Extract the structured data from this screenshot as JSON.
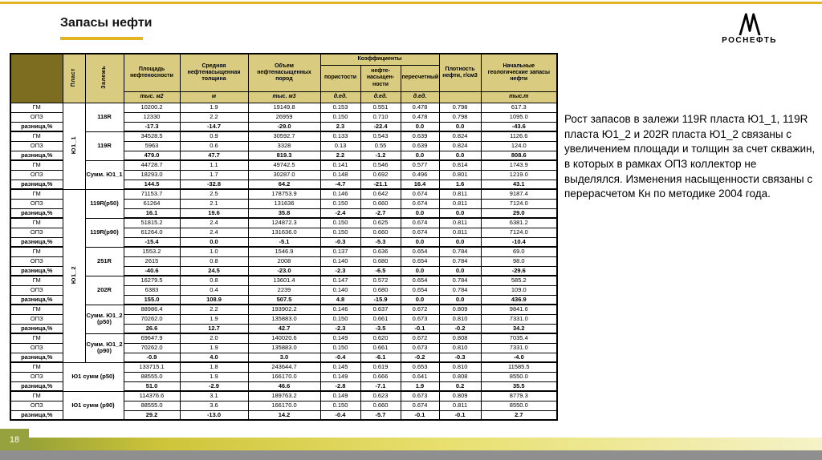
{
  "slide": {
    "title": "Запасы нефти",
    "page_number": "18",
    "logo_text": "РОСНЕФТЬ",
    "commentary": "Рост запасов в залежи 119R пласта Ю1_1, 119R пласта Ю1_2 и 202R пласта Ю1_2 связаны с увеличением площади и толщин за счет скважин, в которых в рамках ОПЗ коллектор не выделялся. Изменения насыщенности связаны с перерасчетом Кн по методике 2004 года."
  },
  "colors": {
    "accent_yellow": "#e3b522",
    "table_header_fill": "#d9cc80",
    "corner_fill": "#7c6d20",
    "page_badge_fill": "#95a23e",
    "viewer_strip": "#8f8f8f"
  },
  "table": {
    "header": {
      "plast": "Пласт",
      "zalezh": "Залежь",
      "coefficients": "Коэффициенты",
      "columns": [
        {
          "label": "Площадь нефтеносности",
          "unit": "тыс. м2"
        },
        {
          "label": "Средняя нефтенасыщенная толщина",
          "unit": "м"
        },
        {
          "label": "Объем нефтенасыщенных пород",
          "unit": "тыс. м3"
        },
        {
          "label": "пористости",
          "unit": "д.ед."
        },
        {
          "label": "нефте-насыщен-ности",
          "unit": "д.ед."
        },
        {
          "label": "пересчетный",
          "unit": "д.ед."
        },
        {
          "label": "Плотность нефти, г/см3",
          "unit": ""
        },
        {
          "label": "Начальные геологические запасы нефти",
          "unit": "тыс.т"
        }
      ]
    },
    "plast_spans": [
      {
        "label": "Ю1_1",
        "groups": 3
      },
      {
        "label": "Ю1_2",
        "groups": 6
      }
    ],
    "row_types": [
      "ГМ",
      "ОПЗ",
      "разница,%"
    ],
    "groups": [
      {
        "zalezh": "118R",
        "merged": false,
        "rows": [
          {
            "type": "ГМ",
            "values": [
              "10200.2",
              "1.9",
              "19149.8",
              "0.153",
              "0.551",
              "0.478",
              "0.798",
              "617.3"
            ]
          },
          {
            "type": "ОПЗ",
            "values": [
              "12330",
              "2.2",
              "26959",
              "0.150",
              "0.710",
              "0.478",
              "0.798",
              "1095.0"
            ]
          },
          {
            "type": "разница,%",
            "values": [
              "-17.3",
              "-14.7",
              "-29.0",
              "2.3",
              "-22.4",
              "0.0",
              "0.0",
              "-43.6"
            ]
          }
        ]
      },
      {
        "zalezh": "119R",
        "merged": false,
        "rows": [
          {
            "type": "ГМ",
            "values": [
              "34528.5",
              "0.9",
              "30592.7",
              "0.133",
              "0.543",
              "0.639",
              "0.824",
              "1126.6"
            ]
          },
          {
            "type": "ОПЗ",
            "values": [
              "5963",
              "0.6",
              "3328",
              "0.13",
              "0.55",
              "0.639",
              "0.824",
              "124.0"
            ]
          },
          {
            "type": "разница,%",
            "values": [
              "479.0",
              "47.7",
              "819.3",
              "2.2",
              "-1.2",
              "0.0",
              "0.0",
              "808.6"
            ]
          }
        ]
      },
      {
        "zalezh": "Сумм. Ю1_1",
        "merged": false,
        "rows": [
          {
            "type": "ГМ",
            "values": [
              "44728.7",
              "1.1",
              "49742.5",
              "0.141",
              "0.546",
              "0.577",
              "0.814",
              "1743.9"
            ]
          },
          {
            "type": "ОПЗ",
            "values": [
              "18293.0",
              "1.7",
              "30287.0",
              "0.148",
              "0.692",
              "0.496",
              "0.801",
              "1219.0"
            ]
          },
          {
            "type": "разница,%",
            "values": [
              "144.5",
              "-32.8",
              "64.2",
              "-4.7",
              "-21.1",
              "16.4",
              "1.6",
              "43.1"
            ]
          }
        ]
      },
      {
        "zalezh": "119R(p50)",
        "merged": false,
        "rows": [
          {
            "type": "ГМ",
            "values": [
              "71153.7",
              "2.5",
              "178753.9",
              "0.146",
              "0.642",
              "0.674",
              "0.811",
              "9187.4"
            ]
          },
          {
            "type": "ОПЗ",
            "values": [
              "61264",
              "2.1",
              "131636",
              "0.150",
              "0.660",
              "0.674",
              "0.811",
              "7124.0"
            ]
          },
          {
            "type": "разница,%",
            "values": [
              "16.1",
              "19.6",
              "35.8",
              "-2.4",
              "-2.7",
              "0.0",
              "0.0",
              "29.0"
            ]
          }
        ]
      },
      {
        "zalezh": "119R(p90)",
        "merged": false,
        "rows": [
          {
            "type": "ГМ",
            "values": [
              "51815.2",
              "2.4",
              "124872.3",
              "0.150",
              "0.625",
              "0.674",
              "0.811",
              "6381.2"
            ]
          },
          {
            "type": "ОПЗ",
            "values": [
              "61264.0",
              "2.4",
              "131636.0",
              "0.150",
              "0.660",
              "0.674",
              "0.811",
              "7124.0"
            ]
          },
          {
            "type": "разница,%",
            "values": [
              "-15.4",
              "0.0",
              "-5.1",
              "-0.3",
              "-5.3",
              "0.0",
              "0.0",
              "-10.4"
            ]
          }
        ]
      },
      {
        "zalezh": "251R",
        "merged": false,
        "rows": [
          {
            "type": "ГМ",
            "values": [
              "1553.2",
              "1.0",
              "1546.9",
              "0.137",
              "0.636",
              "0.654",
              "0.784",
              "69.0"
            ]
          },
          {
            "type": "ОПЗ",
            "values": [
              "2615",
              "0.8",
              "2008",
              "0.140",
              "0.680",
              "0.654",
              "0.784",
              "98.0"
            ]
          },
          {
            "type": "разница,%",
            "values": [
              "-40.6",
              "24.5",
              "-23.0",
              "-2.3",
              "-6.5",
              "0.0",
              "0.0",
              "-29.6"
            ]
          }
        ]
      },
      {
        "zalezh": "202R",
        "merged": false,
        "rows": [
          {
            "type": "ГМ",
            "values": [
              "16279.5",
              "0.8",
              "13601.4",
              "0.147",
              "0.572",
              "0.654",
              "0.784",
              "585.2"
            ]
          },
          {
            "type": "ОПЗ",
            "values": [
              "6383",
              "0.4",
              "2239",
              "0.140",
              "0.680",
              "0.654",
              "0.784",
              "109.0"
            ]
          },
          {
            "type": "разница,%",
            "values": [
              "155.0",
              "108.9",
              "507.5",
              "4.8",
              "-15.9",
              "0.0",
              "0.0",
              "436.9"
            ]
          }
        ]
      },
      {
        "zalezh": "Сумм. Ю1_2 (p50)",
        "merged": false,
        "rows": [
          {
            "type": "ГМ",
            "values": [
              "88986.4",
              "2.2",
              "193902.2",
              "0.146",
              "0.637",
              "0.672",
              "0.809",
              "9841.6"
            ]
          },
          {
            "type": "ОПЗ",
            "values": [
              "70262.0",
              "1.9",
              "135883.0",
              "0.150",
              "0.661",
              "0.673",
              "0.810",
              "7331.0"
            ]
          },
          {
            "type": "разница,%",
            "values": [
              "26.6",
              "12.7",
              "42.7",
              "-2.3",
              "-3.5",
              "-0.1",
              "-0.2",
              "34.2"
            ]
          }
        ]
      },
      {
        "zalezh": "Сумм. Ю1_2 (p90)",
        "merged": false,
        "rows": [
          {
            "type": "ГМ",
            "values": [
              "69647.9",
              "2.0",
              "140020.6",
              "0.149",
              "0.620",
              "0.672",
              "0.808",
              "7035.4"
            ]
          },
          {
            "type": "ОПЗ",
            "values": [
              "70262.0",
              "1.9",
              "135883.0",
              "0.150",
              "0.661",
              "0.673",
              "0.810",
              "7331.0"
            ]
          },
          {
            "type": "разница,%",
            "values": [
              "-0.9",
              "4.0",
              "3.0",
              "-0.4",
              "-6.1",
              "-0.2",
              "-0.3",
              "-4.0"
            ]
          }
        ]
      },
      {
        "zalezh": "Ю1 сумм (p50)",
        "merged": true,
        "rows": [
          {
            "type": "ГМ",
            "values": [
              "133715.1",
              "1.8",
              "243644.7",
              "0.145",
              "0.619",
              "0.653",
              "0.810",
              "11585.5"
            ]
          },
          {
            "type": "ОПЗ",
            "values": [
              "88555.0",
              "1.9",
              "166170.0",
              "0.149",
              "0.666",
              "0.641",
              "0.808",
              "8550.0"
            ]
          },
          {
            "type": "разница,%",
            "values": [
              "51.0",
              "-2.9",
              "46.6",
              "-2.8",
              "-7.1",
              "1.9",
              "0.2",
              "35.5"
            ]
          }
        ]
      },
      {
        "zalezh": "Ю1 сумм (p90)",
        "merged": true,
        "rows": [
          {
            "type": "ГМ",
            "values": [
              "114376.6",
              "3.1",
              "189763.2",
              "0.149",
              "0.623",
              "0.673",
              "0.809",
              "8779.3"
            ]
          },
          {
            "type": "ОПЗ",
            "values": [
              "88555.0",
              "3.6",
              "166170.0",
              "0.150",
              "0.660",
              "0.674",
              "0.811",
              "8550.0"
            ]
          },
          {
            "type": "разница,%",
            "values": [
              "29.2",
              "-13.0",
              "14.2",
              "-0.4",
              "-5.7",
              "-0.1",
              "-0.1",
              "2.7"
            ]
          }
        ]
      }
    ]
  }
}
